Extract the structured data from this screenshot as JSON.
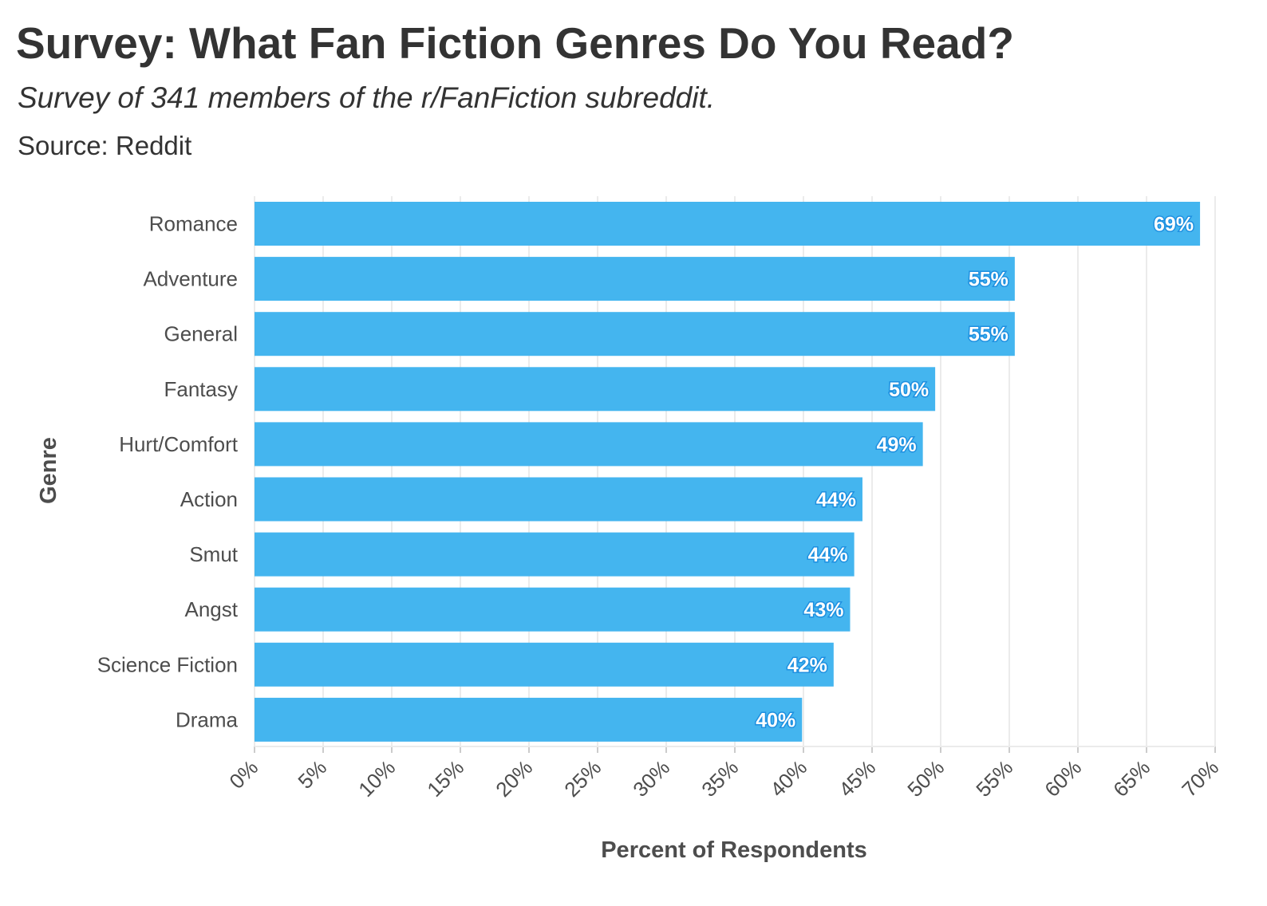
{
  "title": "Survey: What Fan Fiction Genres Do You Read?",
  "subtitle": "Survey of 341 members of the r/FanFiction subreddit.",
  "caption": "Source: Reddit",
  "colors": {
    "bar": "#44b5ef",
    "label_outline": "#1e90e0",
    "grid": "#ebebeb",
    "text": "#333333"
  },
  "chart_data": {
    "type": "bar",
    "orientation": "horizontal",
    "title": "Survey: What Fan Fiction Genres Do You Read?",
    "xlabel": "Percent of Respondents",
    "ylabel": "Genre",
    "xlim": [
      0,
      70
    ],
    "x_ticks": [
      0,
      5,
      10,
      15,
      20,
      25,
      30,
      35,
      40,
      45,
      50,
      55,
      60,
      65,
      70
    ],
    "x_tick_labels": [
      "0%",
      "5%",
      "10%",
      "15%",
      "20%",
      "25%",
      "30%",
      "35%",
      "40%",
      "45%",
      "50%",
      "55%",
      "60%",
      "65%",
      "70%"
    ],
    "grid": true,
    "legend": "none",
    "categories": [
      "Romance",
      "Adventure",
      "General",
      "Fantasy",
      "Hurt/Comfort",
      "Action",
      "Smut",
      "Angst",
      "Science Fiction",
      "Drama"
    ],
    "values": [
      68.9,
      55.4,
      55.4,
      49.6,
      48.7,
      44.3,
      43.7,
      43.4,
      42.2,
      39.9
    ],
    "data_labels": [
      "69%",
      "55%",
      "55%",
      "50%",
      "49%",
      "44%",
      "44%",
      "43%",
      "42%",
      "40%"
    ]
  }
}
